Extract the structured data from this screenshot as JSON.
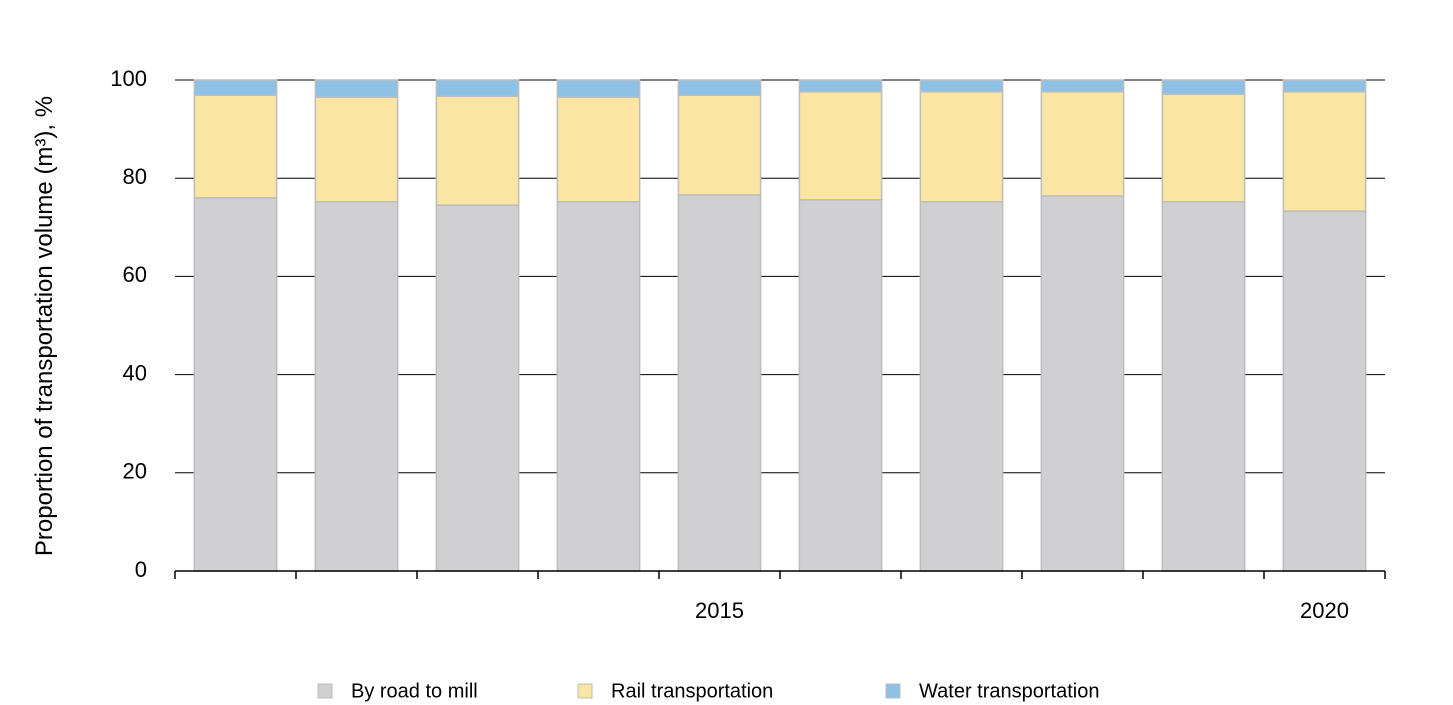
{
  "chart_data": {
    "type": "stacked_bar",
    "y_label": "Proportion  of transportation volume (m³), %",
    "categories": [
      null,
      null,
      null,
      null,
      "2015",
      null,
      null,
      null,
      null,
      "2020"
    ],
    "series": [
      {
        "name": "By road to mill",
        "color": "#d0cfd1",
        "values": [
          76.0,
          75.2,
          74.5,
          75.2,
          76.6,
          75.6,
          75.2,
          76.4,
          75.2,
          73.3
        ]
      },
      {
        "name": "Rail transportation",
        "color": "#fae5a3",
        "values": [
          20.9,
          21.3,
          22.2,
          21.3,
          20.3,
          22.0,
          22.4,
          21.2,
          21.9,
          24.3
        ]
      },
      {
        "name": "Water transportation",
        "color": "#8dc1e6",
        "values": [
          3.1,
          3.5,
          3.3,
          3.5,
          3.1,
          2.4,
          2.4,
          2.4,
          2.9,
          2.4
        ]
      }
    ],
    "ylim": [
      0,
      100
    ],
    "yticks": [
      0,
      20,
      40,
      60,
      80,
      100
    ],
    "grid": true,
    "legend": "bottom"
  }
}
